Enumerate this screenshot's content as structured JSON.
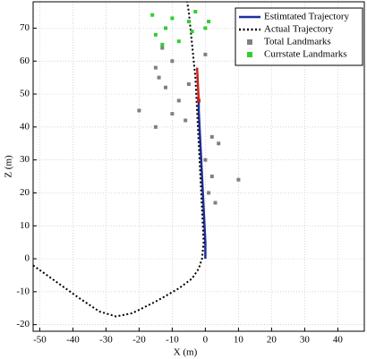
{
  "chart_data": {
    "type": "line",
    "xlabel": "X (m)",
    "ylabel": "Z (m)",
    "xlim": [
      -52,
      48
    ],
    "ylim": [
      -22,
      78
    ],
    "xticks": [
      -50,
      -40,
      -30,
      -20,
      -10,
      0,
      10,
      20,
      30,
      40
    ],
    "yticks": [
      -20,
      -10,
      0,
      10,
      20,
      30,
      40,
      50,
      60,
      70
    ],
    "grid": true,
    "legend": "upper right",
    "series": [
      {
        "name": "Estimtated Trajectory",
        "color": "#1f2f9c",
        "mode": "line",
        "dash": "solid",
        "x": [
          0,
          0,
          -0.5,
          -1,
          -1.5,
          -2,
          -2
        ],
        "values": [
          0,
          5,
          15,
          25,
          35,
          45,
          48
        ]
      },
      {
        "name": "Actual Trajectory",
        "color": "#000000",
        "mode": "line",
        "dash": "dotted",
        "x": [
          -52,
          -45,
          -38,
          -32,
          -27,
          -22,
          -15,
          -8,
          -4,
          -2,
          -1,
          -0.5,
          -1,
          -1.5,
          -2,
          -2.5,
          -3,
          -4,
          -5,
          -5.5
        ],
        "values": [
          -2,
          -7,
          -12,
          -16,
          -17.5,
          -16.5,
          -13,
          -9,
          -6,
          -3,
          0,
          5,
          15,
          25,
          35,
          45,
          55,
          65,
          75,
          78
        ]
      },
      {
        "name": "Total Landmarks",
        "color": "#808080",
        "mode": "scatter",
        "x": [
          -15,
          -14,
          -12,
          -8,
          -10,
          -15,
          2,
          4,
          0,
          2,
          1,
          3,
          10,
          -5,
          -20,
          -6,
          -13,
          -10,
          0
        ],
        "values": [
          58,
          55,
          52,
          48,
          44,
          40,
          37,
          35,
          30,
          25,
          20,
          17,
          24,
          53,
          45,
          42,
          64,
          60,
          62
        ]
      },
      {
        "name": "Currstate Landmarks",
        "color": "#33cc33",
        "mode": "scatter",
        "x": [
          -15,
          -12,
          -8,
          -5,
          -10,
          -13,
          -3,
          0,
          1,
          -4,
          -16
        ],
        "values": [
          68,
          70,
          66,
          72,
          73,
          65,
          75,
          70,
          72,
          69,
          74
        ]
      },
      {
        "color": "#cc2222",
        "mode": "line",
        "dash": "solid",
        "x": [
          -2,
          -2.5
        ],
        "values": [
          48,
          58
        ]
      },
      {
        "color": "#cc2222",
        "mode": "scatter",
        "x": [
          -2
        ],
        "values": [
          48
        ]
      }
    ]
  }
}
